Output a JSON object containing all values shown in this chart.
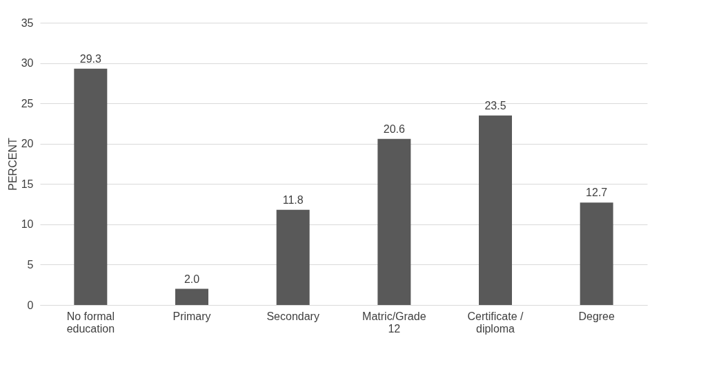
{
  "chart_data": {
    "type": "bar",
    "ylabel": "PERCENT",
    "categories": [
      "No formal education",
      "Primary",
      "Secondary",
      "Matric/Grade 12",
      "Certificate / diploma",
      "Degree"
    ],
    "values": [
      29.3,
      2.0,
      11.8,
      20.6,
      23.5,
      12.7
    ],
    "value_labels": [
      "29.3",
      "2.0",
      "11.8",
      "20.6",
      "23.5",
      "12.7"
    ],
    "color": "#595959",
    "ylim": [
      0,
      35
    ],
    "yticks": [
      0,
      5,
      10,
      15,
      20,
      25,
      30,
      35
    ],
    "grid": "y"
  }
}
